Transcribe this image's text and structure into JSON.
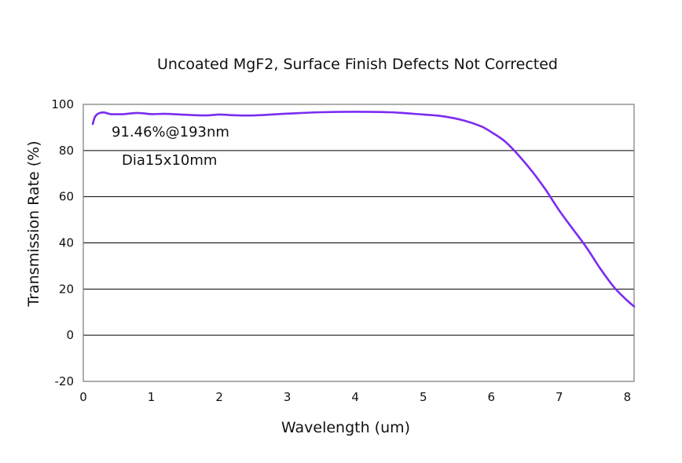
{
  "chart_data": {
    "type": "line",
    "title": "Uncoated MgF2, Surface Finish Defects Not Corrected",
    "xlabel": "Wavelength (um)",
    "ylabel": "Transmission Rate (%)",
    "xlim": [
      0,
      8.1
    ],
    "ylim": [
      -20,
      100
    ],
    "xticks": [
      "0",
      "1",
      "2",
      "3",
      "4",
      "5",
      "6",
      "7",
      "8"
    ],
    "yticks": [
      "100",
      "80",
      "60",
      "40",
      "20",
      "0",
      "-20"
    ],
    "grid": "horizontal",
    "series": [
      {
        "color": "#7b2cf0",
        "x": [
          0.14,
          0.17,
          0.22,
          0.3,
          0.4,
          0.5,
          0.6,
          0.8,
          1.0,
          1.2,
          1.5,
          1.8,
          2.0,
          2.2,
          2.5,
          3.0,
          3.5,
          4.0,
          4.5,
          5.0,
          5.3,
          5.6,
          5.85,
          6.0,
          6.2,
          6.4,
          6.6,
          6.8,
          7.0,
          7.2,
          7.4,
          7.6,
          7.8,
          8.0,
          8.1
        ],
        "y": [
          91.5,
          94.5,
          96.0,
          96.5,
          95.8,
          95.7,
          95.8,
          96.3,
          95.8,
          95.9,
          95.5,
          95.2,
          95.6,
          95.3,
          95.2,
          96.0,
          96.6,
          96.8,
          96.6,
          95.6,
          94.8,
          93.0,
          90.5,
          88.0,
          84.0,
          78.0,
          71.0,
          63.0,
          54.0,
          46.0,
          38.0,
          29.0,
          21.0,
          15.0,
          12.5
        ]
      }
    ],
    "annotations": [
      "91.46%@193nm",
      "Dia15x10mm"
    ]
  }
}
